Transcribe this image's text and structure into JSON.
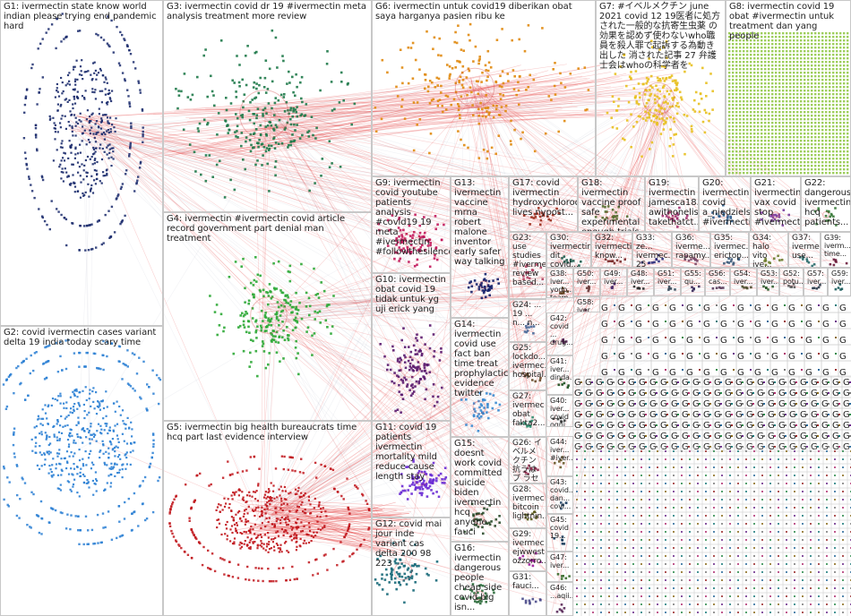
{
  "groups": [
    {
      "id": "G1",
      "label": "G1: ivermectin state know world indian please trying end pandemic hard",
      "color": "#1a2a6c"
    },
    {
      "id": "G2",
      "label": "G2: covid ivermectin cases variant delta 19 india today scary time",
      "color": "#2a7fd4"
    },
    {
      "id": "G3",
      "label": "G3: ivermectin covid dr 19 #ivermectin meta analysis treatment more review",
      "color": "#1f7a4a"
    },
    {
      "id": "G4",
      "label": "G4: ivermectin #ivermectin covid article record government part denial man treatment",
      "color": "#2ea836"
    },
    {
      "id": "G5",
      "label": "G5: ivermectin big health bureaucrats time hcq part last evidence interview",
      "color": "#c0141a"
    },
    {
      "id": "G6",
      "label": "G6: ivermectin untuk covid19 diberikan obat saya harganya pasien ribu ke",
      "color": "#e08a10"
    },
    {
      "id": "G7",
      "label": "G7: #イベルメクチン june 2021 covid 12 19医者に処方された一般的な抗寄生虫薬 の効果を認めず使わないwho職員を殺人罪で起訴する為動き出した 消された記事 27 弁護士会はwhoの科学者を",
      "color": "#e8c020"
    },
    {
      "id": "G8",
      "label": "G8: ivermectin covid 19 obat #ivermectin untuk treatment dan yang people",
      "color": "#8dc63f"
    },
    {
      "id": "G9",
      "label": "G9: ivermectin covid youtube patients analysis #covid19 19 meta #ivermectin #followthesilence",
      "color": "#c2185b"
    },
    {
      "id": "G10",
      "label": "G10: ivermectin obat covid 19 tidak untuk yg uji erick yang",
      "color": "#5a1a6e"
    },
    {
      "id": "G11",
      "label": "G11: covid 19 patients ivermectin mortality mild reduce cause length stay",
      "color": "#6a2bd4"
    },
    {
      "id": "G12",
      "label": "G12: covid mai jour inde variant cas delta 200 98 223",
      "color": "#1a6a7a"
    },
    {
      "id": "G13",
      "label": "G13: ivermectin vaccine mrna robert malone inventor early safer way talking",
      "color": "#14206a"
    },
    {
      "id": "G14",
      "label": "G14: ivermectin covid use fact ban time treat prophylactic evidence twitter",
      "color": "#3a8ad0"
    },
    {
      "id": "G15",
      "label": "G15: doesnt work covid committed suicide biden ivermectin hcq anyone fauci",
      "color": "#2a4a2a"
    },
    {
      "id": "G16",
      "label": "G16: ivermectin dangerous people cheap side covid big isn...",
      "color": "#2a6a3a"
    },
    {
      "id": "G17",
      "label": "G17: covid ivermectin hydroxychloroq... lives nypost...",
      "color": "#9a2a1a"
    },
    {
      "id": "G18",
      "label": "G18: ivermectin vaccine proof safe experimental enough trials",
      "color": "#556b2f"
    },
    {
      "id": "G19",
      "label": "G19: ivermectin jamesca18... awithonelis... takethatct...",
      "color": "#a03070"
    },
    {
      "id": "G20",
      "label": "G20: ivermectin covid a_niedziels... #ivermectin",
      "color": "#2a5a8a"
    },
    {
      "id": "G21",
      "label": "G21: ivermectin vax covid stop #ivermectin",
      "color": "#7a3a9a"
    },
    {
      "id": "G22",
      "label": "G22: dangerous ivermectin hcq patients...",
      "color": "#3a7a3a"
    },
    {
      "id": "G23",
      "label": "G23: use studies #ivermectin review based...",
      "color": "#b04060"
    },
    {
      "id": "G24",
      "label": "G24: ... 19 ... n... n...",
      "color": "#4a6a9a"
    },
    {
      "id": "G25",
      "label": "G25: lockdo... ivermec... hospital...",
      "color": "#6a4a2a"
    },
    {
      "id": "G26",
      "label": "G26: イベルメクチン 抗うはプ ラセボ...",
      "color": "#8a2a4a"
    },
    {
      "id": "G27",
      "label": "G27: ivermec obat fakta2...",
      "color": "#2a8a6a"
    },
    {
      "id": "G28",
      "label": "G28: ivermec bitcoin lightnin...",
      "color": "#5a5a1a"
    },
    {
      "id": "G29",
      "label": "G29: ivermec ejwwest ozzorro...",
      "color": "#9a1a9a"
    },
    {
      "id": "G30",
      "label": "G30: ivermectin dit covid...",
      "color": "#1a5a4a"
    },
    {
      "id": "G31",
      "label": "G31: fauci...",
      "color": "#4a4a8a"
    },
    {
      "id": "G32",
      "label": "G32: ivermectin know...",
      "color": "#7a2a2a"
    },
    {
      "id": "G33",
      "label": "G33: ze... ivermec... 25 mei...",
      "color": "#2a2a7a"
    },
    {
      "id": "G34",
      "label": "G34: halo vito ive...",
      "color": "#6a7a2a"
    },
    {
      "id": "G35",
      "label": "G35: ivermec... erictop...",
      "color": "#3a5a7a"
    },
    {
      "id": "G36",
      "label": "G36: iverme... rapamy...",
      "color": "#7a4a6a"
    },
    {
      "id": "G37",
      "label": "G37: iverme... use...",
      "color": "#2a6a6a"
    },
    {
      "id": "G38",
      "label": "G38: iver... yodo... team...",
      "color": "#5a3a1a"
    },
    {
      "id": "G39",
      "label": "G39: iverm... time...",
      "color": "#6a1a3a"
    },
    {
      "id": "G40",
      "label": "G40: iver... covid ogni...",
      "color": "#3a3a3a"
    },
    {
      "id": "G41",
      "label": "G41: iver... dinda...",
      "color": "#1a4a1a"
    },
    {
      "id": "G42",
      "label": "G42: covid ... drug...",
      "color": "#4a1a4a"
    },
    {
      "id": "G43",
      "label": "G43: covid... dan... covi...",
      "color": "#2a4a6a"
    },
    {
      "id": "G44",
      "label": "G44: iver... #iver...",
      "color": "#6a5a2a"
    },
    {
      "id": "G45",
      "label": "G45: covid 19...",
      "color": "#1a3a5a"
    },
    {
      "id": "G46",
      "label": "G46: ...aqii...",
      "color": "#5a2a5a"
    },
    {
      "id": "G47",
      "label": "G47: iver...",
      "color": "#3a6a2a"
    },
    {
      "id": "G48",
      "label": "G48: iver...",
      "color": "#2a2a2a"
    },
    {
      "id": "G49",
      "label": "G49: iver...",
      "color": "#4a2a6a"
    },
    {
      "id": "G50",
      "label": "G50: iver...",
      "color": "#6a3a3a"
    },
    {
      "id": "G51",
      "label": "G51: iver...",
      "color": "#3a4a5a"
    },
    {
      "id": "G52",
      "label": "G52: potu...",
      "color": "#5a5a5a"
    },
    {
      "id": "G53",
      "label": "G53: iver...",
      "color": "#2a5a2a"
    },
    {
      "id": "G54",
      "label": "G54: iver...",
      "color": "#4a4a2a"
    },
    {
      "id": "G55",
      "label": "G55: qu...",
      "color": "#3a2a5a"
    },
    {
      "id": "G56",
      "label": "G56: cas...",
      "color": "#5a3a5a"
    },
    {
      "id": "G57",
      "label": "G57: iver...",
      "color": "#2a3a4a"
    },
    {
      "id": "G58",
      "label": "G58: iver...",
      "color": "#6a2a4a"
    },
    {
      "id": "G59",
      "label": "G59: iver...",
      "color": "#1a5a5a"
    }
  ],
  "grid_letter": "G"
}
